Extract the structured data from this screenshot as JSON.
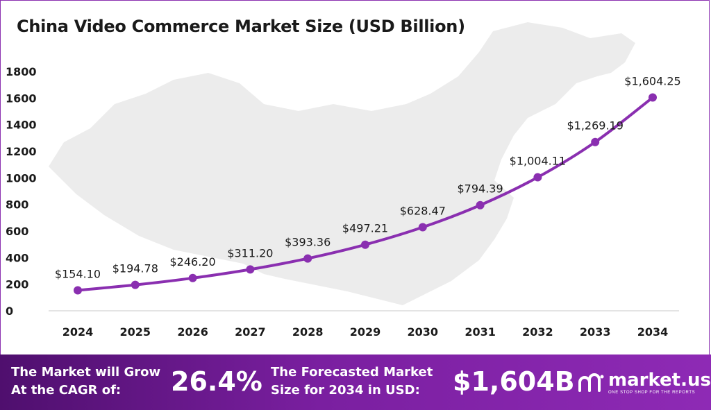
{
  "chart_data": {
    "type": "line",
    "title": "China Video Commerce Market Size (USD Billion)",
    "xlabel": "",
    "ylabel": "",
    "x": [
      "2024",
      "2025",
      "2026",
      "2027",
      "2028",
      "2029",
      "2030",
      "2031",
      "2032",
      "2033",
      "2034"
    ],
    "series": [
      {
        "values": [
          154.1,
          194.78,
          246.2,
          311.2,
          393.36,
          497.21,
          628.47,
          794.39,
          1004.11,
          1269.19,
          1604.25
        ],
        "labels": [
          "$154.10",
          "$194.78",
          "$246.20",
          "$311.20",
          "$393.36",
          "$497.21",
          "$628.47",
          "$794.39",
          "$1,004.11",
          "$1,269.19",
          "$1,604.25"
        ]
      }
    ],
    "ylim": [
      0,
      1800
    ],
    "yticks": [
      "0",
      "200",
      "400",
      "600",
      "800",
      "1000",
      "1200",
      "1400",
      "1600",
      "1800"
    ],
    "grid": false,
    "line_color": "#8a2fb0",
    "background_shape": "china-map-silhouette"
  },
  "footer": {
    "cagr_label_line1": "The Market will Grow",
    "cagr_label_line2": "At the CAGR of:",
    "cagr_value": "26.4%",
    "forecast_label_line1": "The Forecasted Market",
    "forecast_label_line2": "Size for 2034 in USD:",
    "forecast_value": "$1,604B",
    "background_color": "#7a1fa0"
  },
  "brand": {
    "name": "market.us",
    "tagline": "ONE STOP SHOP FOR THE REPORTS",
    "icon": "market-us-logo-icon"
  }
}
